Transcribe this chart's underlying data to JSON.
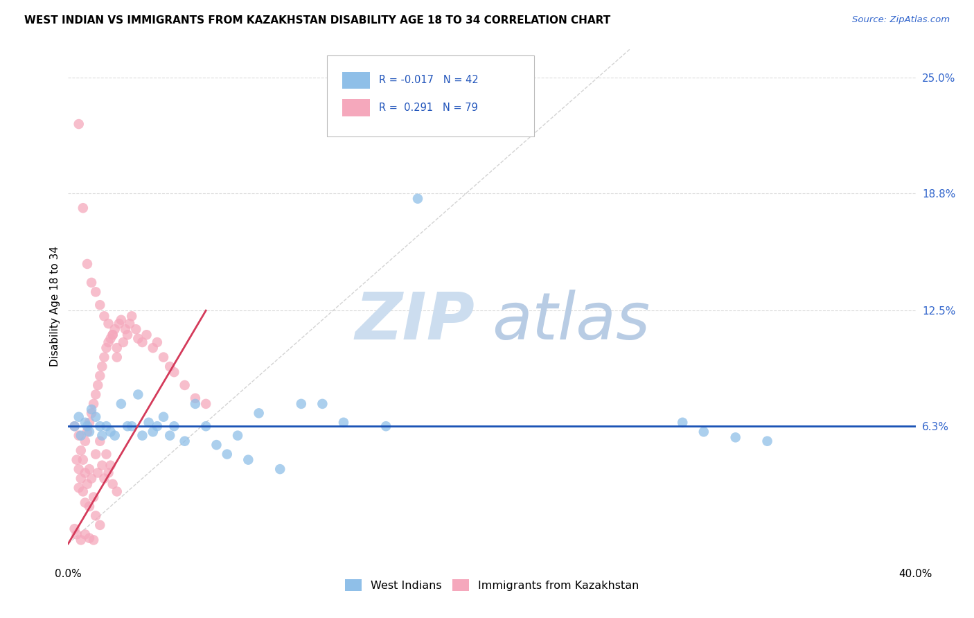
{
  "title": "WEST INDIAN VS IMMIGRANTS FROM KAZAKHSTAN DISABILITY AGE 18 TO 34 CORRELATION CHART",
  "source": "Source: ZipAtlas.com",
  "ylabel": "Disability Age 18 to 34",
  "xlim": [
    0.0,
    0.4
  ],
  "ylim": [
    -0.01,
    0.265
  ],
  "xticks": [
    0.0,
    0.1,
    0.2,
    0.3,
    0.4
  ],
  "xticklabels": [
    "0.0%",
    "",
    "",
    "",
    "40.0%"
  ],
  "ytick_positions": [
    0.063,
    0.125,
    0.188,
    0.25
  ],
  "ytick_labels": [
    "6.3%",
    "12.5%",
    "18.8%",
    "25.0%"
  ],
  "background_color": "#ffffff",
  "grid_color": "#d8d8d8",
  "watermark_zip": "ZIP",
  "watermark_atlas": "atlas",
  "legend_R_blue": "-0.017",
  "legend_N_blue": "42",
  "legend_R_pink": "0.291",
  "legend_N_pink": "79",
  "west_indians_color": "#8fbfe8",
  "kazakhstan_color": "#f5a8bc",
  "trend_blue_color": "#1a52b5",
  "trend_pink_color": "#d43a5a",
  "diagonal_color": "#c8c8c8",
  "west_indians_x": [
    0.003,
    0.005,
    0.006,
    0.008,
    0.009,
    0.01,
    0.011,
    0.013,
    0.015,
    0.016,
    0.018,
    0.02,
    0.022,
    0.025,
    0.028,
    0.03,
    0.033,
    0.035,
    0.038,
    0.04,
    0.042,
    0.045,
    0.048,
    0.05,
    0.055,
    0.06,
    0.065,
    0.07,
    0.075,
    0.08,
    0.085,
    0.09,
    0.1,
    0.11,
    0.12,
    0.13,
    0.15,
    0.165,
    0.29,
    0.3,
    0.315,
    0.33
  ],
  "west_indians_y": [
    0.063,
    0.068,
    0.058,
    0.065,
    0.063,
    0.06,
    0.072,
    0.068,
    0.063,
    0.058,
    0.063,
    0.06,
    0.058,
    0.075,
    0.063,
    0.063,
    0.08,
    0.058,
    0.065,
    0.06,
    0.063,
    0.068,
    0.058,
    0.063,
    0.055,
    0.075,
    0.063,
    0.053,
    0.048,
    0.058,
    0.045,
    0.07,
    0.04,
    0.075,
    0.075,
    0.065,
    0.063,
    0.185,
    0.065,
    0.06,
    0.057,
    0.055
  ],
  "kazakhstan_x": [
    0.003,
    0.004,
    0.005,
    0.005,
    0.005,
    0.006,
    0.006,
    0.007,
    0.007,
    0.008,
    0.008,
    0.008,
    0.009,
    0.009,
    0.01,
    0.01,
    0.01,
    0.011,
    0.011,
    0.012,
    0.012,
    0.013,
    0.013,
    0.013,
    0.014,
    0.014,
    0.015,
    0.015,
    0.015,
    0.016,
    0.016,
    0.017,
    0.017,
    0.018,
    0.018,
    0.019,
    0.019,
    0.02,
    0.02,
    0.021,
    0.021,
    0.022,
    0.023,
    0.023,
    0.024,
    0.025,
    0.026,
    0.027,
    0.028,
    0.029,
    0.03,
    0.032,
    0.033,
    0.035,
    0.037,
    0.04,
    0.042,
    0.045,
    0.048,
    0.05,
    0.055,
    0.06,
    0.065,
    0.005,
    0.007,
    0.009,
    0.011,
    0.013,
    0.015,
    0.017,
    0.019,
    0.021,
    0.023,
    0.003,
    0.004,
    0.006,
    0.008,
    0.01,
    0.012
  ],
  "kazakhstan_y": [
    0.063,
    0.045,
    0.04,
    0.058,
    0.03,
    0.05,
    0.035,
    0.045,
    0.028,
    0.055,
    0.038,
    0.022,
    0.06,
    0.032,
    0.065,
    0.04,
    0.02,
    0.07,
    0.035,
    0.075,
    0.025,
    0.08,
    0.048,
    0.015,
    0.085,
    0.038,
    0.09,
    0.055,
    0.01,
    0.095,
    0.042,
    0.1,
    0.035,
    0.105,
    0.048,
    0.108,
    0.038,
    0.11,
    0.042,
    0.112,
    0.032,
    0.115,
    0.1,
    0.028,
    0.118,
    0.12,
    0.108,
    0.115,
    0.112,
    0.118,
    0.122,
    0.115,
    0.11,
    0.108,
    0.112,
    0.105,
    0.108,
    0.1,
    0.095,
    0.092,
    0.085,
    0.078,
    0.075,
    0.225,
    0.18,
    0.15,
    0.14,
    0.135,
    0.128,
    0.122,
    0.118,
    0.112,
    0.105,
    0.008,
    0.005,
    0.002,
    0.005,
    0.003,
    0.002
  ]
}
